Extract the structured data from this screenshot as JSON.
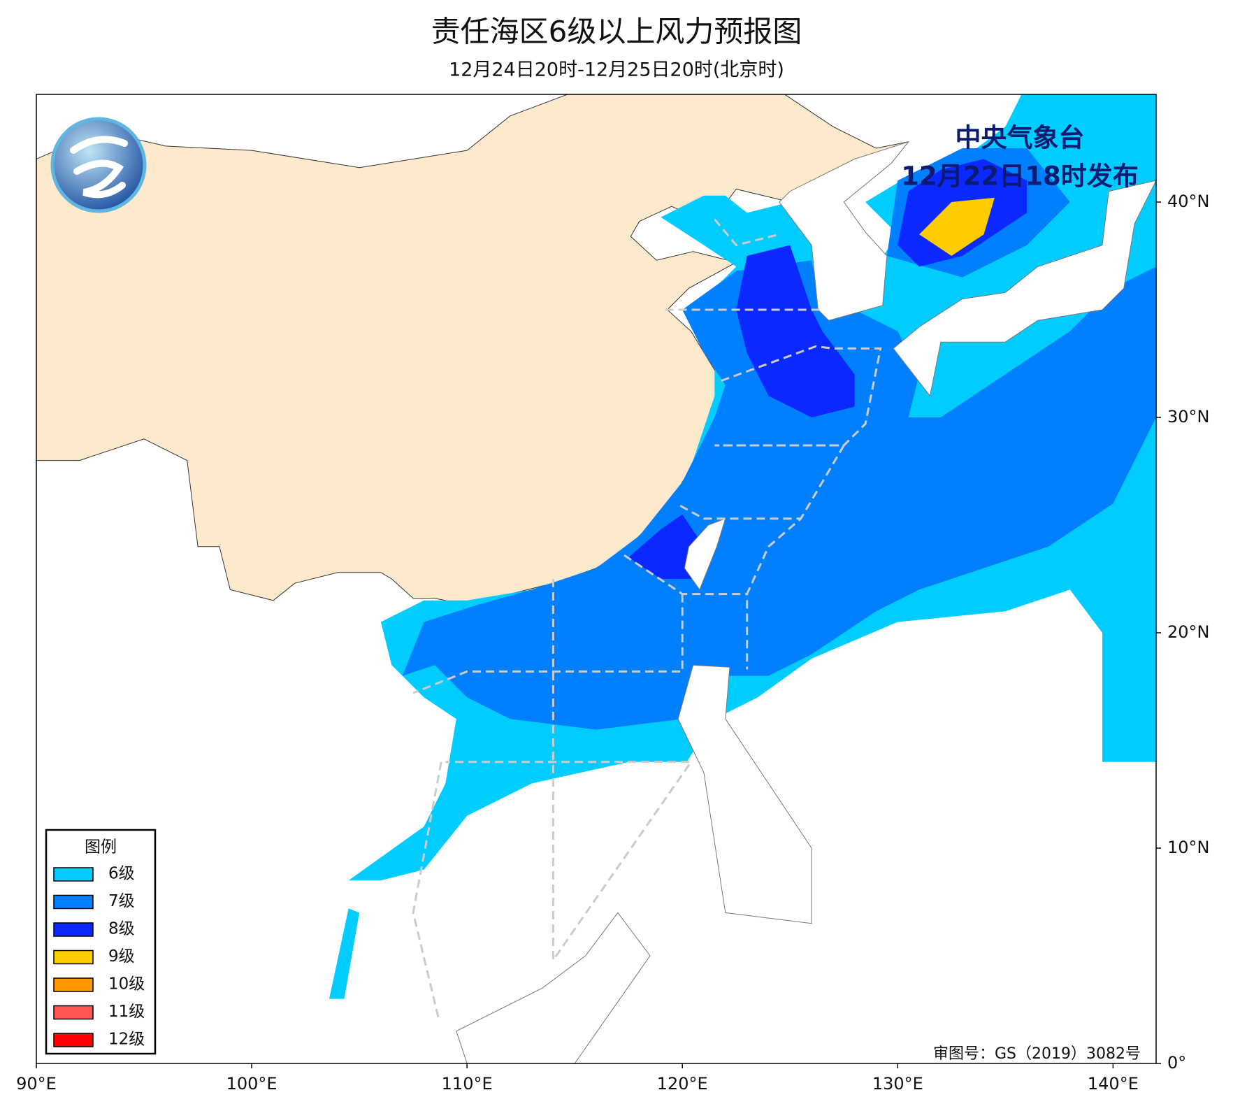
{
  "header": {
    "title": "责任海区6级以上风力预报图",
    "subtitle": "12月24日20时-12月25日20时(北京时)"
  },
  "stamp": {
    "issuer": "中央气象台",
    "issued": "12月22日18时发布"
  },
  "legend": {
    "title": "图例",
    "items": [
      {
        "label": "6级",
        "color": "#00ccff"
      },
      {
        "label": "7级",
        "color": "#0080ff"
      },
      {
        "label": "8级",
        "color": "#0a28ff"
      },
      {
        "label": "9级",
        "color": "#ffcc00"
      },
      {
        "label": "10级",
        "color": "#ff9900"
      },
      {
        "label": "11级",
        "color": "#ff5555"
      },
      {
        "label": "12级",
        "color": "#ff0000"
      }
    ]
  },
  "map": {
    "lonlim": [
      90,
      142
    ],
    "latlim": [
      0,
      45
    ],
    "lonticks": [
      {
        "value": 90,
        "label": "90°E"
      },
      {
        "value": 100,
        "label": "100°E"
      },
      {
        "value": 110,
        "label": "110°E"
      },
      {
        "value": 120,
        "label": "120°E"
      },
      {
        "value": 130,
        "label": "130°E"
      },
      {
        "value": 140,
        "label": "140°E"
      }
    ],
    "latticks": [
      {
        "value": 0,
        "label": "0°"
      },
      {
        "value": 10,
        "label": "10°N"
      },
      {
        "value": 20,
        "label": "20°N"
      },
      {
        "value": 30,
        "label": "30°N"
      },
      {
        "value": 40,
        "label": "40°N"
      }
    ]
  },
  "footer": {
    "approval": "审图号：GS（2019）3082号"
  }
}
